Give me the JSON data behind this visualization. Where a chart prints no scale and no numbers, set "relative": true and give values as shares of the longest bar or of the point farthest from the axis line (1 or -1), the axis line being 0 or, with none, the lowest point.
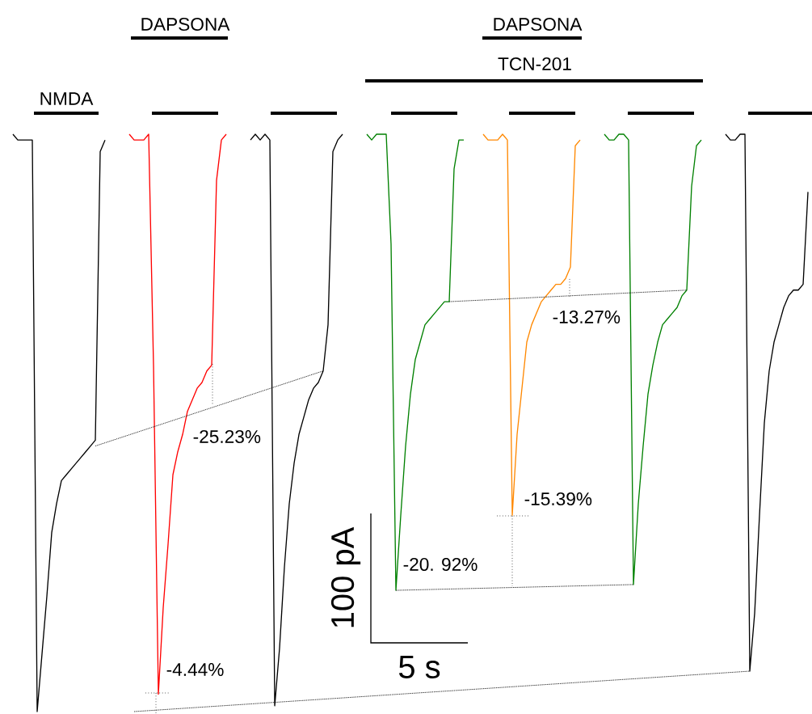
{
  "chart_data": {
    "type": "line",
    "relative": true,
    "categories": [
      null,
      null,
      null,
      null,
      null,
      null,
      null,
      null,
      null,
      null,
      null,
      null,
      null,
      null,
      null,
      null,
      null,
      null,
      null,
      null,
      null,
      null,
      null,
      null,
      null,
      null,
      null,
      null,
      null,
      null,
      null,
      null,
      null,
      null,
      null,
      null,
      null,
      null,
      null,
      null,
      null,
      null,
      null,
      null,
      null,
      null,
      null,
      null,
      null,
      null,
      null,
      null,
      null,
      null,
      null,
      null,
      null,
      null,
      null,
      null,
      null,
      null,
      null,
      null,
      null,
      null,
      null,
      null,
      null,
      null,
      null,
      null,
      null,
      null,
      null,
      null,
      null,
      null,
      null,
      null,
      null,
      null,
      null,
      null,
      null,
      null,
      null,
      null,
      null,
      null,
      null,
      null,
      null,
      null,
      null,
      null,
      null,
      null,
      null,
      null,
      null,
      null,
      null,
      null,
      null,
      null,
      null,
      null,
      null,
      null,
      null,
      null,
      null,
      null,
      null,
      null,
      null,
      null,
      null,
      null,
      null,
      null,
      null,
      null,
      null,
      null,
      null,
      null,
      null,
      null,
      null,
      null,
      null,
      null,
      null,
      null,
      null,
      null,
      null,
      null,
      null,
      null,
      null,
      null,
      null,
      null,
      null,
      null,
      null,
      null,
      null,
      null,
      null,
      null,
      null,
      null,
      null,
      null,
      null,
      null,
      null,
      null,
      null,
      null,
      null,
      null
    ],
    "series": [
      {
        "color": "#000000",
        "values": [
          null,
          1.0,
          0.99,
          0.99,
          0.99,
          0.99,
          0.0,
          0.1,
          0.2,
          0.31,
          0.36,
          0.4,
          0.41,
          0.42,
          0.43,
          0.44,
          0.45,
          0.46,
          0.47,
          0.97,
          0.99,
          null,
          null,
          null,
          null,
          null,
          null,
          null,
          null,
          null,
          null,
          null,
          null,
          null,
          null,
          null,
          null,
          null,
          null,
          null,
          null,
          null,
          null,
          null,
          null,
          null,
          null,
          null,
          null,
          null,
          null,
          null,
          null,
          null,
          null,
          null,
          null,
          null,
          null,
          null,
          null,
          null,
          null,
          null,
          null,
          null,
          null,
          null,
          null,
          null,
          null,
          null,
          null,
          null,
          null,
          null,
          null,
          null,
          null,
          null,
          null,
          null,
          null,
          null,
          null,
          null,
          null,
          null,
          null,
          null,
          null,
          null,
          null,
          null,
          null,
          null,
          null,
          null,
          null,
          null,
          null,
          null,
          null,
          null,
          null,
          null,
          null,
          null,
          null,
          null,
          null,
          null,
          null,
          null,
          null,
          null,
          null,
          null,
          null,
          null,
          null,
          null,
          null,
          null,
          null,
          null,
          null,
          null,
          null,
          null,
          null,
          null,
          null,
          null,
          null,
          null,
          null,
          null,
          null,
          null,
          null,
          null,
          null,
          null,
          null,
          null,
          null,
          null,
          null,
          null,
          null,
          null,
          null,
          null,
          null,
          null,
          null,
          null,
          null,
          null,
          null,
          null,
          null,
          null,
          null,
          null
        ]
      },
      {
        "color": "#ff0000",
        "values": [
          null,
          null,
          null,
          null,
          null,
          null,
          null,
          null,
          null,
          null,
          null,
          null,
          null,
          null,
          null,
          null,
          null,
          null,
          null,
          null,
          null,
          null,
          null,
          null,
          null,
          1.0,
          0.99,
          0.99,
          0.99,
          1.0,
          0.6,
          0.03,
          0.18,
          0.29,
          0.41,
          0.45,
          0.48,
          0.52,
          0.54,
          0.56,
          0.57,
          0.59,
          0.6,
          0.92,
          0.99,
          1.0,
          null,
          null,
          null,
          null,
          null,
          null,
          null,
          null,
          null,
          null,
          null,
          null,
          null,
          null,
          null,
          null,
          null,
          null,
          null,
          null,
          null,
          null,
          null,
          null,
          null,
          null,
          null,
          null,
          null,
          null,
          null,
          null,
          null,
          null,
          null,
          null,
          null,
          null,
          null,
          null,
          null,
          null,
          null,
          null,
          null,
          null,
          null,
          null,
          null,
          null,
          null,
          null,
          null,
          null,
          null,
          null,
          null,
          null,
          null,
          null,
          null,
          null,
          null,
          null,
          null,
          null,
          null,
          null,
          null,
          null,
          null,
          null,
          null,
          null,
          null,
          null,
          null,
          null,
          null,
          null,
          null,
          null,
          null,
          null,
          null,
          null,
          null,
          null,
          null,
          null,
          null,
          null,
          null,
          null,
          null,
          null,
          null,
          null,
          null,
          null,
          null,
          null,
          null,
          null,
          null,
          null,
          null,
          null,
          null,
          null,
          null,
          null,
          null,
          null,
          null,
          null,
          null,
          null,
          null,
          null
        ]
      },
      {
        "color": "#000000",
        "values": [
          null,
          null,
          null,
          null,
          null,
          null,
          null,
          null,
          null,
          null,
          null,
          null,
          null,
          null,
          null,
          null,
          null,
          null,
          null,
          null,
          null,
          null,
          null,
          null,
          null,
          null,
          null,
          null,
          null,
          null,
          null,
          null,
          null,
          null,
          null,
          null,
          null,
          null,
          null,
          null,
          null,
          null,
          null,
          null,
          null,
          null,
          null,
          null,
          null,
          null,
          0.99,
          1.0,
          0.99,
          1.0,
          0.99,
          0.01,
          0.11,
          0.25,
          0.36,
          0.43,
          0.48,
          0.51,
          0.54,
          0.56,
          0.57,
          0.59,
          0.67,
          0.97,
          0.99,
          1.0,
          null,
          null,
          null,
          null,
          null,
          null,
          null,
          null,
          null,
          null,
          null,
          null,
          null,
          null,
          null,
          null,
          null,
          null,
          null,
          null,
          null,
          null,
          null,
          null,
          null,
          null,
          null,
          null,
          null,
          null,
          null,
          null,
          null,
          null,
          null,
          null,
          null,
          null,
          null,
          null,
          null,
          null,
          null,
          null,
          null,
          null,
          null,
          null,
          null,
          null,
          null,
          null,
          null,
          null,
          null,
          null,
          null,
          null,
          null,
          null,
          null,
          null,
          null,
          null,
          null,
          null,
          null,
          null,
          null,
          null,
          null,
          null,
          null,
          null,
          null,
          null,
          null,
          null,
          null,
          null,
          null,
          null,
          null,
          null,
          null,
          null,
          null,
          null,
          null,
          null,
          null,
          null,
          null,
          null,
          null,
          null
        ]
      },
      {
        "color": "#008000",
        "values": [
          null,
          null,
          null,
          null,
          null,
          null,
          null,
          null,
          null,
          null,
          null,
          null,
          null,
          null,
          null,
          null,
          null,
          null,
          null,
          null,
          null,
          null,
          null,
          null,
          null,
          null,
          null,
          null,
          null,
          null,
          null,
          null,
          null,
          null,
          null,
          null,
          null,
          null,
          null,
          null,
          null,
          null,
          null,
          null,
          null,
          null,
          null,
          null,
          null,
          null,
          null,
          null,
          null,
          null,
          null,
          null,
          null,
          null,
          null,
          null,
          null,
          null,
          null,
          null,
          null,
          null,
          null,
          null,
          null,
          null,
          null,
          null,
          null,
          null,
          1.0,
          0.99,
          1.0,
          1.0,
          1.0,
          0.81,
          0.21,
          0.34,
          0.46,
          0.55,
          0.61,
          0.64,
          0.67,
          0.68,
          0.69,
          0.7,
          0.71,
          0.71,
          0.94,
          0.99,
          0.99,
          null,
          null,
          null,
          null,
          null,
          null,
          null,
          null,
          null,
          null,
          null,
          null,
          null,
          null,
          null,
          null,
          null,
          null,
          null,
          null,
          null,
          null,
          null,
          null,
          null,
          null,
          null,
          null,
          null,
          null,
          null,
          null,
          null,
          null,
          null,
          null,
          null,
          null,
          null,
          null,
          null,
          null,
          null,
          null,
          null,
          null,
          null,
          null,
          null,
          null,
          null,
          null,
          null,
          null,
          null,
          null,
          null,
          null,
          null,
          null,
          null,
          null,
          null,
          null,
          null,
          null,
          null,
          null,
          null,
          null,
          null
        ]
      },
      {
        "color": "#ff8800",
        "values": [
          null,
          null,
          null,
          null,
          null,
          null,
          null,
          null,
          null,
          null,
          null,
          null,
          null,
          null,
          null,
          null,
          null,
          null,
          null,
          null,
          null,
          null,
          null,
          null,
          null,
          null,
          null,
          null,
          null,
          null,
          null,
          null,
          null,
          null,
          null,
          null,
          null,
          null,
          null,
          null,
          null,
          null,
          null,
          null,
          null,
          null,
          null,
          null,
          null,
          null,
          null,
          null,
          null,
          null,
          null,
          null,
          null,
          null,
          null,
          null,
          null,
          null,
          null,
          null,
          null,
          null,
          null,
          null,
          null,
          null,
          null,
          null,
          null,
          null,
          null,
          null,
          null,
          null,
          null,
          null,
          null,
          null,
          null,
          null,
          null,
          null,
          null,
          null,
          null,
          null,
          null,
          null,
          null,
          null,
          null,
          null,
          null,
          null,
          1.0,
          0.99,
          0.99,
          0.99,
          1.0,
          0.99,
          0.34,
          0.48,
          0.56,
          0.64,
          0.67,
          0.69,
          0.71,
          0.72,
          0.73,
          0.74,
          0.74,
          0.75,
          0.77,
          0.98,
          0.99,
          null,
          null,
          null,
          null,
          null,
          null,
          null,
          null,
          null,
          null,
          null,
          null,
          null,
          null,
          null,
          null,
          null,
          null,
          null,
          null,
          null,
          null,
          null,
          null,
          null,
          null,
          null,
          null,
          null,
          null,
          null,
          null,
          null,
          null,
          null,
          null,
          null,
          null,
          null,
          null,
          null,
          null,
          null,
          null,
          null,
          null,
          null
        ]
      },
      {
        "color": "#008000",
        "values": [
          null,
          null,
          null,
          null,
          null,
          null,
          null,
          null,
          null,
          null,
          null,
          null,
          null,
          null,
          null,
          null,
          null,
          null,
          null,
          null,
          null,
          null,
          null,
          null,
          null,
          null,
          null,
          null,
          null,
          null,
          null,
          null,
          null,
          null,
          null,
          null,
          null,
          null,
          null,
          null,
          null,
          null,
          null,
          null,
          null,
          null,
          null,
          null,
          null,
          null,
          null,
          null,
          null,
          null,
          null,
          null,
          null,
          null,
          null,
          null,
          null,
          null,
          null,
          null,
          null,
          null,
          null,
          null,
          null,
          null,
          null,
          null,
          null,
          null,
          null,
          null,
          null,
          null,
          null,
          null,
          null,
          null,
          null,
          null,
          null,
          null,
          null,
          null,
          null,
          null,
          null,
          null,
          null,
          null,
          null,
          null,
          null,
          null,
          null,
          null,
          null,
          null,
          null,
          null,
          null,
          null,
          null,
          null,
          null,
          null,
          null,
          null,
          null,
          null,
          null,
          null,
          null,
          null,
          null,
          null,
          null,
          null,
          null,
          1.0,
          0.99,
          0.99,
          1.0,
          1.0,
          0.99,
          0.22,
          0.36,
          0.46,
          0.55,
          0.6,
          0.64,
          0.67,
          0.68,
          0.69,
          0.7,
          0.72,
          0.73,
          0.91,
          0.98,
          0.99,
          null,
          null,
          null,
          null,
          null,
          null,
          null,
          null,
          null,
          null,
          null,
          null,
          null,
          null,
          null,
          null,
          null,
          null,
          null,
          null,
          null,
          null
        ]
      },
      {
        "color": "#000000",
        "values": [
          null,
          null,
          null,
          null,
          null,
          null,
          null,
          null,
          null,
          null,
          null,
          null,
          null,
          null,
          null,
          null,
          null,
          null,
          null,
          null,
          null,
          null,
          null,
          null,
          null,
          null,
          null,
          null,
          null,
          null,
          null,
          null,
          null,
          null,
          null,
          null,
          null,
          null,
          null,
          null,
          null,
          null,
          null,
          null,
          null,
          null,
          null,
          null,
          null,
          null,
          null,
          null,
          null,
          null,
          null,
          null,
          null,
          null,
          null,
          null,
          null,
          null,
          null,
          null,
          null,
          null,
          null,
          null,
          null,
          null,
          null,
          null,
          null,
          null,
          null,
          null,
          null,
          null,
          null,
          null,
          null,
          null,
          null,
          null,
          null,
          null,
          null,
          null,
          null,
          null,
          null,
          null,
          null,
          null,
          null,
          null,
          null,
          null,
          null,
          null,
          null,
          null,
          null,
          null,
          null,
          null,
          null,
          null,
          null,
          null,
          null,
          null,
          null,
          null,
          null,
          null,
          null,
          null,
          null,
          null,
          null,
          null,
          null,
          null,
          null,
          null,
          null,
          null,
          null,
          null,
          null,
          null,
          null,
          null,
          null,
          null,
          null,
          null,
          null,
          null,
          null,
          null,
          null,
          null,
          null,
          null,
          null,
          null,
          1.0,
          0.99,
          0.99,
          1.0,
          1.0,
          0.07,
          0.17,
          0.34,
          0.5,
          0.59,
          0.64,
          0.67,
          0.7,
          0.72,
          0.73,
          0.73,
          0.74,
          0.9
        ]
      },
      {
        "color": "#000000",
        "line_style": "dotted",
        "values": [
          null,
          null,
          null,
          null,
          null,
          null,
          null,
          null,
          null,
          null,
          null,
          null,
          null,
          null,
          null,
          null,
          null,
          null,
          0.46,
          null,
          null,
          null,
          null,
          null,
          null,
          null,
          null,
          null,
          null,
          null,
          null,
          null,
          null,
          null,
          null,
          null,
          null,
          null,
          null,
          null,
          null,
          null,
          null,
          null,
          null,
          null,
          null,
          null,
          null,
          null,
          null,
          null,
          null,
          null,
          null,
          null,
          null,
          null,
          null,
          null,
          null,
          null,
          null,
          null,
          null,
          0.59,
          null,
          null,
          null,
          null,
          null,
          null,
          null,
          null,
          null,
          null,
          null,
          null,
          null,
          null,
          null,
          null,
          null,
          null,
          null,
          null,
          null,
          null,
          null,
          null,
          null,
          null,
          null,
          null,
          null,
          null,
          null,
          null,
          null,
          null,
          null,
          null,
          null,
          null,
          null,
          null,
          null,
          null,
          null,
          null,
          null,
          null,
          null,
          null,
          null,
          null,
          null,
          null,
          null,
          null,
          null,
          null,
          null,
          null,
          null,
          null,
          null,
          null,
          null,
          null,
          null,
          null,
          null,
          null,
          null,
          null,
          null,
          null,
          null,
          null,
          null,
          null,
          null,
          null,
          null,
          null,
          null,
          null,
          null,
          null,
          null,
          null,
          null,
          null,
          null,
          null,
          null,
          null,
          null,
          null,
          null,
          null,
          null,
          null,
          null,
          null
        ]
      },
      {
        "color": "#000000",
        "line_style": "dotted",
        "values": [
          null,
          null,
          null,
          null,
          null,
          null,
          null,
          null,
          null,
          null,
          null,
          null,
          null,
          null,
          null,
          null,
          null,
          null,
          null,
          null,
          null,
          null,
          null,
          null,
          null,
          null,
          0.0,
          null,
          null,
          null,
          null,
          null,
          null,
          null,
          null,
          null,
          null,
          null,
          null,
          null,
          null,
          null,
          null,
          null,
          null,
          null,
          null,
          null,
          null,
          null,
          null,
          null,
          null,
          null,
          null,
          null,
          null,
          null,
          null,
          null,
          null,
          null,
          null,
          null,
          null,
          null,
          null,
          null,
          null,
          null,
          null,
          null,
          null,
          null,
          null,
          null,
          null,
          null,
          null,
          null,
          null,
          null,
          null,
          null,
          null,
          null,
          null,
          null,
          null,
          null,
          null,
          null,
          null,
          null,
          null,
          null,
          null,
          null,
          null,
          null,
          null,
          null,
          null,
          null,
          null,
          null,
          null,
          null,
          null,
          null,
          null,
          null,
          null,
          null,
          null,
          null,
          null,
          null,
          null,
          null,
          null,
          null,
          null,
          null,
          null,
          null,
          null,
          null,
          null,
          null,
          null,
          null,
          null,
          null,
          null,
          null,
          null,
          null,
          null,
          null,
          null,
          null,
          null,
          null,
          null,
          null,
          null,
          null,
          null,
          null,
          null,
          null,
          null,
          0.07,
          null,
          null,
          null,
          null,
          null,
          null,
          null,
          null,
          null,
          null,
          null,
          null
        ]
      },
      {
        "color": "#000000",
        "line_style": "dotted",
        "values": [
          null,
          null,
          null,
          null,
          null,
          null,
          null,
          null,
          null,
          null,
          null,
          null,
          null,
          null,
          null,
          null,
          null,
          null,
          null,
          null,
          null,
          null,
          null,
          null,
          null,
          null,
          null,
          null,
          null,
          null,
          null,
          null,
          null,
          null,
          null,
          null,
          null,
          null,
          null,
          null,
          null,
          null,
          null,
          null,
          null,
          null,
          null,
          null,
          null,
          null,
          null,
          null,
          null,
          null,
          null,
          null,
          null,
          null,
          null,
          null,
          null,
          null,
          null,
          null,
          null,
          null,
          null,
          null,
          null,
          null,
          null,
          null,
          null,
          null,
          null,
          null,
          null,
          null,
          null,
          null,
          null,
          null,
          null,
          null,
          null,
          null,
          null,
          null,
          null,
          null,
          null,
          0.71,
          null,
          null,
          null,
          null,
          null,
          null,
          null,
          null,
          null,
          null,
          null,
          null,
          null,
          null,
          null,
          null,
          null,
          null,
          null,
          null,
          null,
          null,
          null,
          null,
          null,
          null,
          null,
          null,
          null,
          null,
          null,
          null,
          null,
          null,
          null,
          null,
          null,
          null,
          null,
          null,
          null,
          null,
          null,
          null,
          null,
          null,
          null,
          null,
          0.73,
          null,
          null,
          null,
          null,
          null,
          null,
          null,
          null,
          null,
          null,
          null,
          null,
          null,
          null,
          null,
          null,
          null,
          null,
          null,
          null,
          null,
          null,
          null,
          null,
          null
        ]
      },
      {
        "color": "#000000",
        "line_style": "dotted",
        "values": [
          null,
          null,
          null,
          null,
          null,
          null,
          null,
          null,
          null,
          null,
          null,
          null,
          null,
          null,
          null,
          null,
          null,
          null,
          null,
          null,
          null,
          null,
          null,
          null,
          null,
          null,
          null,
          null,
          null,
          null,
          null,
          null,
          null,
          null,
          null,
          null,
          null,
          null,
          null,
          null,
          null,
          null,
          null,
          null,
          null,
          null,
          null,
          null,
          null,
          null,
          null,
          null,
          null,
          null,
          null,
          null,
          null,
          null,
          null,
          null,
          null,
          null,
          null,
          null,
          null,
          null,
          null,
          null,
          null,
          null,
          null,
          null,
          null,
          null,
          null,
          null,
          null,
          null,
          null,
          null,
          0.21,
          null,
          null,
          null,
          null,
          null,
          null,
          null,
          null,
          null,
          null,
          null,
          null,
          null,
          null,
          null,
          null,
          null,
          null,
          null,
          null,
          null,
          null,
          null,
          null,
          null,
          null,
          null,
          null,
          null,
          null,
          null,
          null,
          null,
          null,
          null,
          null,
          null,
          null,
          null,
          null,
          null,
          null,
          null,
          null,
          null,
          null,
          null,
          null,
          0.22,
          null,
          null,
          null,
          null,
          null,
          null,
          null,
          null,
          null,
          null,
          null,
          null,
          null,
          null,
          null,
          null,
          null,
          null,
          null,
          null,
          null,
          null,
          null,
          null,
          null,
          null,
          null,
          null,
          null,
          null,
          null,
          null,
          null,
          null,
          null,
          null
        ]
      }
    ],
    "annotations": [
      "NMDA",
      "DAPSONA",
      "DAPSONA",
      "TCN-201",
      "-25.23%",
      "-4.44%",
      "-20. 92%",
      "-15.39%",
      "-13.27%",
      "100 pA",
      "5 s"
    ]
  }
}
